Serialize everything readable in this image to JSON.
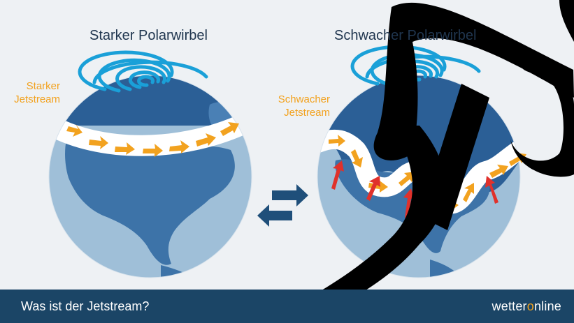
{
  "panels": {
    "left": {
      "title": "Starker Polarwirbel",
      "jet_label": [
        "Starker",
        "Jetstream"
      ]
    },
    "right": {
      "title": "Schwacher Polarwirbel",
      "jet_label": [
        "Schwacher",
        "Jetstream"
      ]
    }
  },
  "footer": {
    "caption": "Was ist der Jetstream?",
    "brand_a": "wetter",
    "brand_b": "o",
    "brand_c": "nline"
  },
  "colors": {
    "background": "#eef1f4",
    "ocean": "#9fbfd8",
    "land": "#3d73a8",
    "polar_cap": "#2b5f96",
    "vortex": "#1aa0d8",
    "jet_band": "#ffffff",
    "jet_arrow": "#f2a21f",
    "warm_air_arrow": "#e0312b",
    "exchange_arrow": "#1f4f7a",
    "footer": "#1b4566",
    "watermark": "#000000"
  },
  "icons": [
    "polar-vortex-spiral-icon",
    "jetstream-arrow-icon",
    "warm-air-arrow-icon",
    "exchange-arrows-icon"
  ]
}
